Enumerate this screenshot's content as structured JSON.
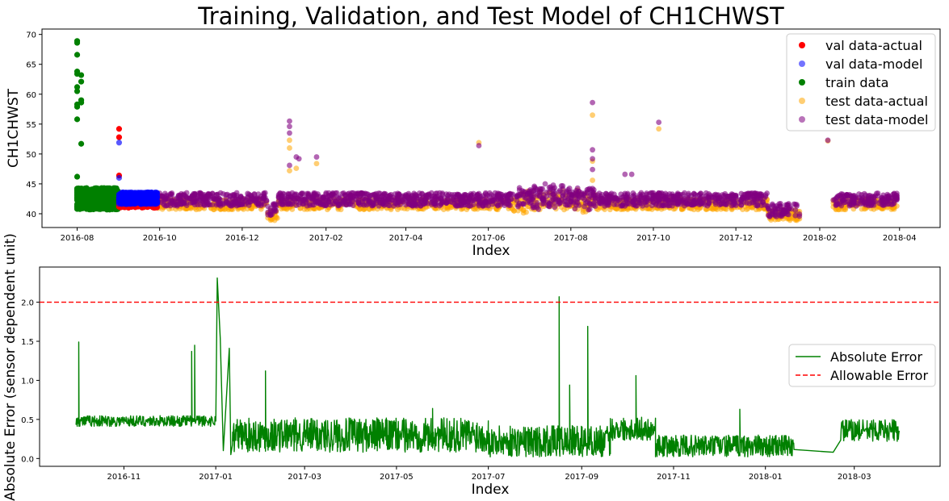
{
  "colors": {
    "val_actual": "#ff0000",
    "val_model": "#0000ff",
    "train": "#008000",
    "test_actual": "#ffa500",
    "test_model": "#800080",
    "abs_error": "#008000",
    "allowable": "#ff0000"
  },
  "chart_data": [
    {
      "type": "scatter",
      "title": "Training, Validation, and Test Model of CH1CHWST",
      "xlabel": "Index",
      "ylabel": "CH1CHWST",
      "x_ticks": [
        "2016-08",
        "2016-10",
        "2016-12",
        "2017-02",
        "2017-04",
        "2017-06",
        "2017-08",
        "2017-10",
        "2017-12",
        "2018-02",
        "2018-04"
      ],
      "y_ticks": [
        40,
        45,
        50,
        55,
        60,
        65,
        70
      ],
      "xlim": [
        "2016-07-06",
        "2018-05-01"
      ],
      "ylim": [
        37.7,
        70.9
      ],
      "legend_position": "upper right",
      "legend": [
        "val data-actual",
        "val data-model",
        "train data",
        "test data-actual",
        "test data-model"
      ],
      "series": [
        {
          "name": "train data",
          "key": "train",
          "date_range": [
            "2016-08-01",
            "2016-09-01"
          ],
          "base": 42.5,
          "noise": 1.8,
          "points": [
            [
              "2016-08-01",
              68.9
            ],
            [
              "2016-08-01",
              68.6
            ],
            [
              "2016-08-01",
              66.6
            ],
            [
              "2016-08-01",
              63.8
            ],
            [
              "2016-08-01",
              63.4
            ],
            [
              "2016-08-01",
              61.2
            ],
            [
              "2016-08-01",
              60.5
            ],
            [
              "2016-08-01",
              58.3
            ],
            [
              "2016-08-01",
              57.9
            ],
            [
              "2016-08-01",
              55.8
            ],
            [
              "2016-08-01",
              46.2
            ],
            [
              "2016-08-04",
              63.2
            ],
            [
              "2016-08-04",
              62.1
            ],
            [
              "2016-08-04",
              59.0
            ],
            [
              "2016-08-04",
              58.6
            ],
            [
              "2016-08-04",
              51.7
            ]
          ]
        },
        {
          "name": "val data-actual",
          "key": "val_actual",
          "date_range": [
            "2016-09-01",
            "2016-09-30"
          ],
          "base": 41.8,
          "noise": 0.8,
          "points": [
            [
              "2016-09-01",
              54.2
            ],
            [
              "2016-09-01",
              52.8
            ],
            [
              "2016-09-01",
              46.4
            ]
          ]
        },
        {
          "name": "val data-model",
          "key": "val_model",
          "date_range": [
            "2016-09-01",
            "2016-09-30"
          ],
          "base": 42.6,
          "noise": 1.0,
          "points": [
            [
              "2016-09-01",
              51.9
            ],
            [
              "2016-09-01",
              46.0
            ]
          ]
        },
        {
          "name": "test data-actual",
          "key": "test_actual",
          "date_range": [
            "2016-09-30",
            "2018-03-31"
          ],
          "base": 41.6,
          "noise": 0.9,
          "points": [
            [
              "2017-01-05",
              52.3
            ],
            [
              "2017-01-05",
              51.0
            ],
            [
              "2017-01-05",
              47.2
            ],
            [
              "2017-01-10",
              47.6
            ],
            [
              "2017-01-25",
              48.4
            ],
            [
              "2017-05-25",
              51.9
            ],
            [
              "2017-08-17",
              56.5
            ],
            [
              "2017-08-17",
              48.8
            ],
            [
              "2017-08-17",
              45.6
            ],
            [
              "2017-10-05",
              54.2
            ],
            [
              "2018-02-07",
              52.2
            ]
          ]
        },
        {
          "name": "test data-model",
          "key": "test_model",
          "date_range": [
            "2016-09-30",
            "2018-03-31"
          ],
          "base": 42.4,
          "noise": 1.1,
          "points": [
            [
              "2017-01-05",
              55.5
            ],
            [
              "2017-01-05",
              54.6
            ],
            [
              "2017-01-05",
              53.5
            ],
            [
              "2017-01-05",
              48.1
            ],
            [
              "2017-01-10",
              49.5
            ],
            [
              "2017-01-12",
              49.2
            ],
            [
              "2017-01-25",
              49.5
            ],
            [
              "2017-05-25",
              51.4
            ],
            [
              "2017-08-17",
              58.6
            ],
            [
              "2017-08-17",
              50.7
            ],
            [
              "2017-08-17",
              49.2
            ],
            [
              "2017-08-17",
              47.4
            ],
            [
              "2017-09-10",
              46.6
            ],
            [
              "2017-09-15",
              46.6
            ],
            [
              "2017-10-05",
              55.3
            ],
            [
              "2018-02-07",
              52.3
            ]
          ]
        }
      ]
    },
    {
      "type": "line",
      "xlabel": "Index",
      "ylabel": "Absolute Error (sensor dependent unit)",
      "x_ticks": [
        "2016-11",
        "2017-01",
        "2017-03",
        "2017-05",
        "2017-07",
        "2017-09",
        "2017-11",
        "2018-01",
        "2018-03"
      ],
      "y_ticks": [
        0.0,
        0.5,
        1.0,
        1.5,
        2.0
      ],
      "xlim": [
        "2016-09-06",
        "2018-04-27"
      ],
      "ylim": [
        -0.1,
        2.45
      ],
      "legend_position": "center right",
      "legend": [
        "Absolute Error",
        "Allowable Error"
      ],
      "allowable_error": 2.0,
      "series": [
        {
          "name": "Absolute Error",
          "key": "abs_error",
          "segments": [
            {
              "from": "2016-09-30",
              "to": "2017-01-01",
              "base": 0.48,
              "noise": 0.07
            },
            {
              "from": "2017-01-12",
              "to": "2017-07-01",
              "base": 0.3,
              "noise": 0.22
            },
            {
              "from": "2017-07-01",
              "to": "2017-09-20",
              "base": 0.22,
              "noise": 0.2
            },
            {
              "from": "2017-09-20",
              "to": "2017-10-20",
              "base": 0.38,
              "noise": 0.15
            },
            {
              "from": "2017-10-20",
              "to": "2018-01-20",
              "base": 0.16,
              "noise": 0.14
            },
            {
              "from": "2018-02-20",
              "to": "2018-03-31",
              "base": 0.36,
              "noise": 0.14
            }
          ],
          "spikes": [
            [
              "2016-10-02",
              1.49
            ],
            [
              "2016-12-16",
              1.37
            ],
            [
              "2016-12-18",
              1.45
            ],
            [
              "2017-01-02",
              2.31
            ],
            [
              "2017-01-04",
              1.54
            ],
            [
              "2017-01-10",
              1.41
            ],
            [
              "2017-02-03",
              1.12
            ],
            [
              "2017-05-25",
              0.64
            ],
            [
              "2017-08-17",
              2.07
            ],
            [
              "2017-08-24",
              0.94
            ],
            [
              "2017-09-05",
              1.69
            ],
            [
              "2017-10-07",
              1.06
            ],
            [
              "2017-12-15",
              0.63
            ]
          ]
        }
      ]
    }
  ]
}
